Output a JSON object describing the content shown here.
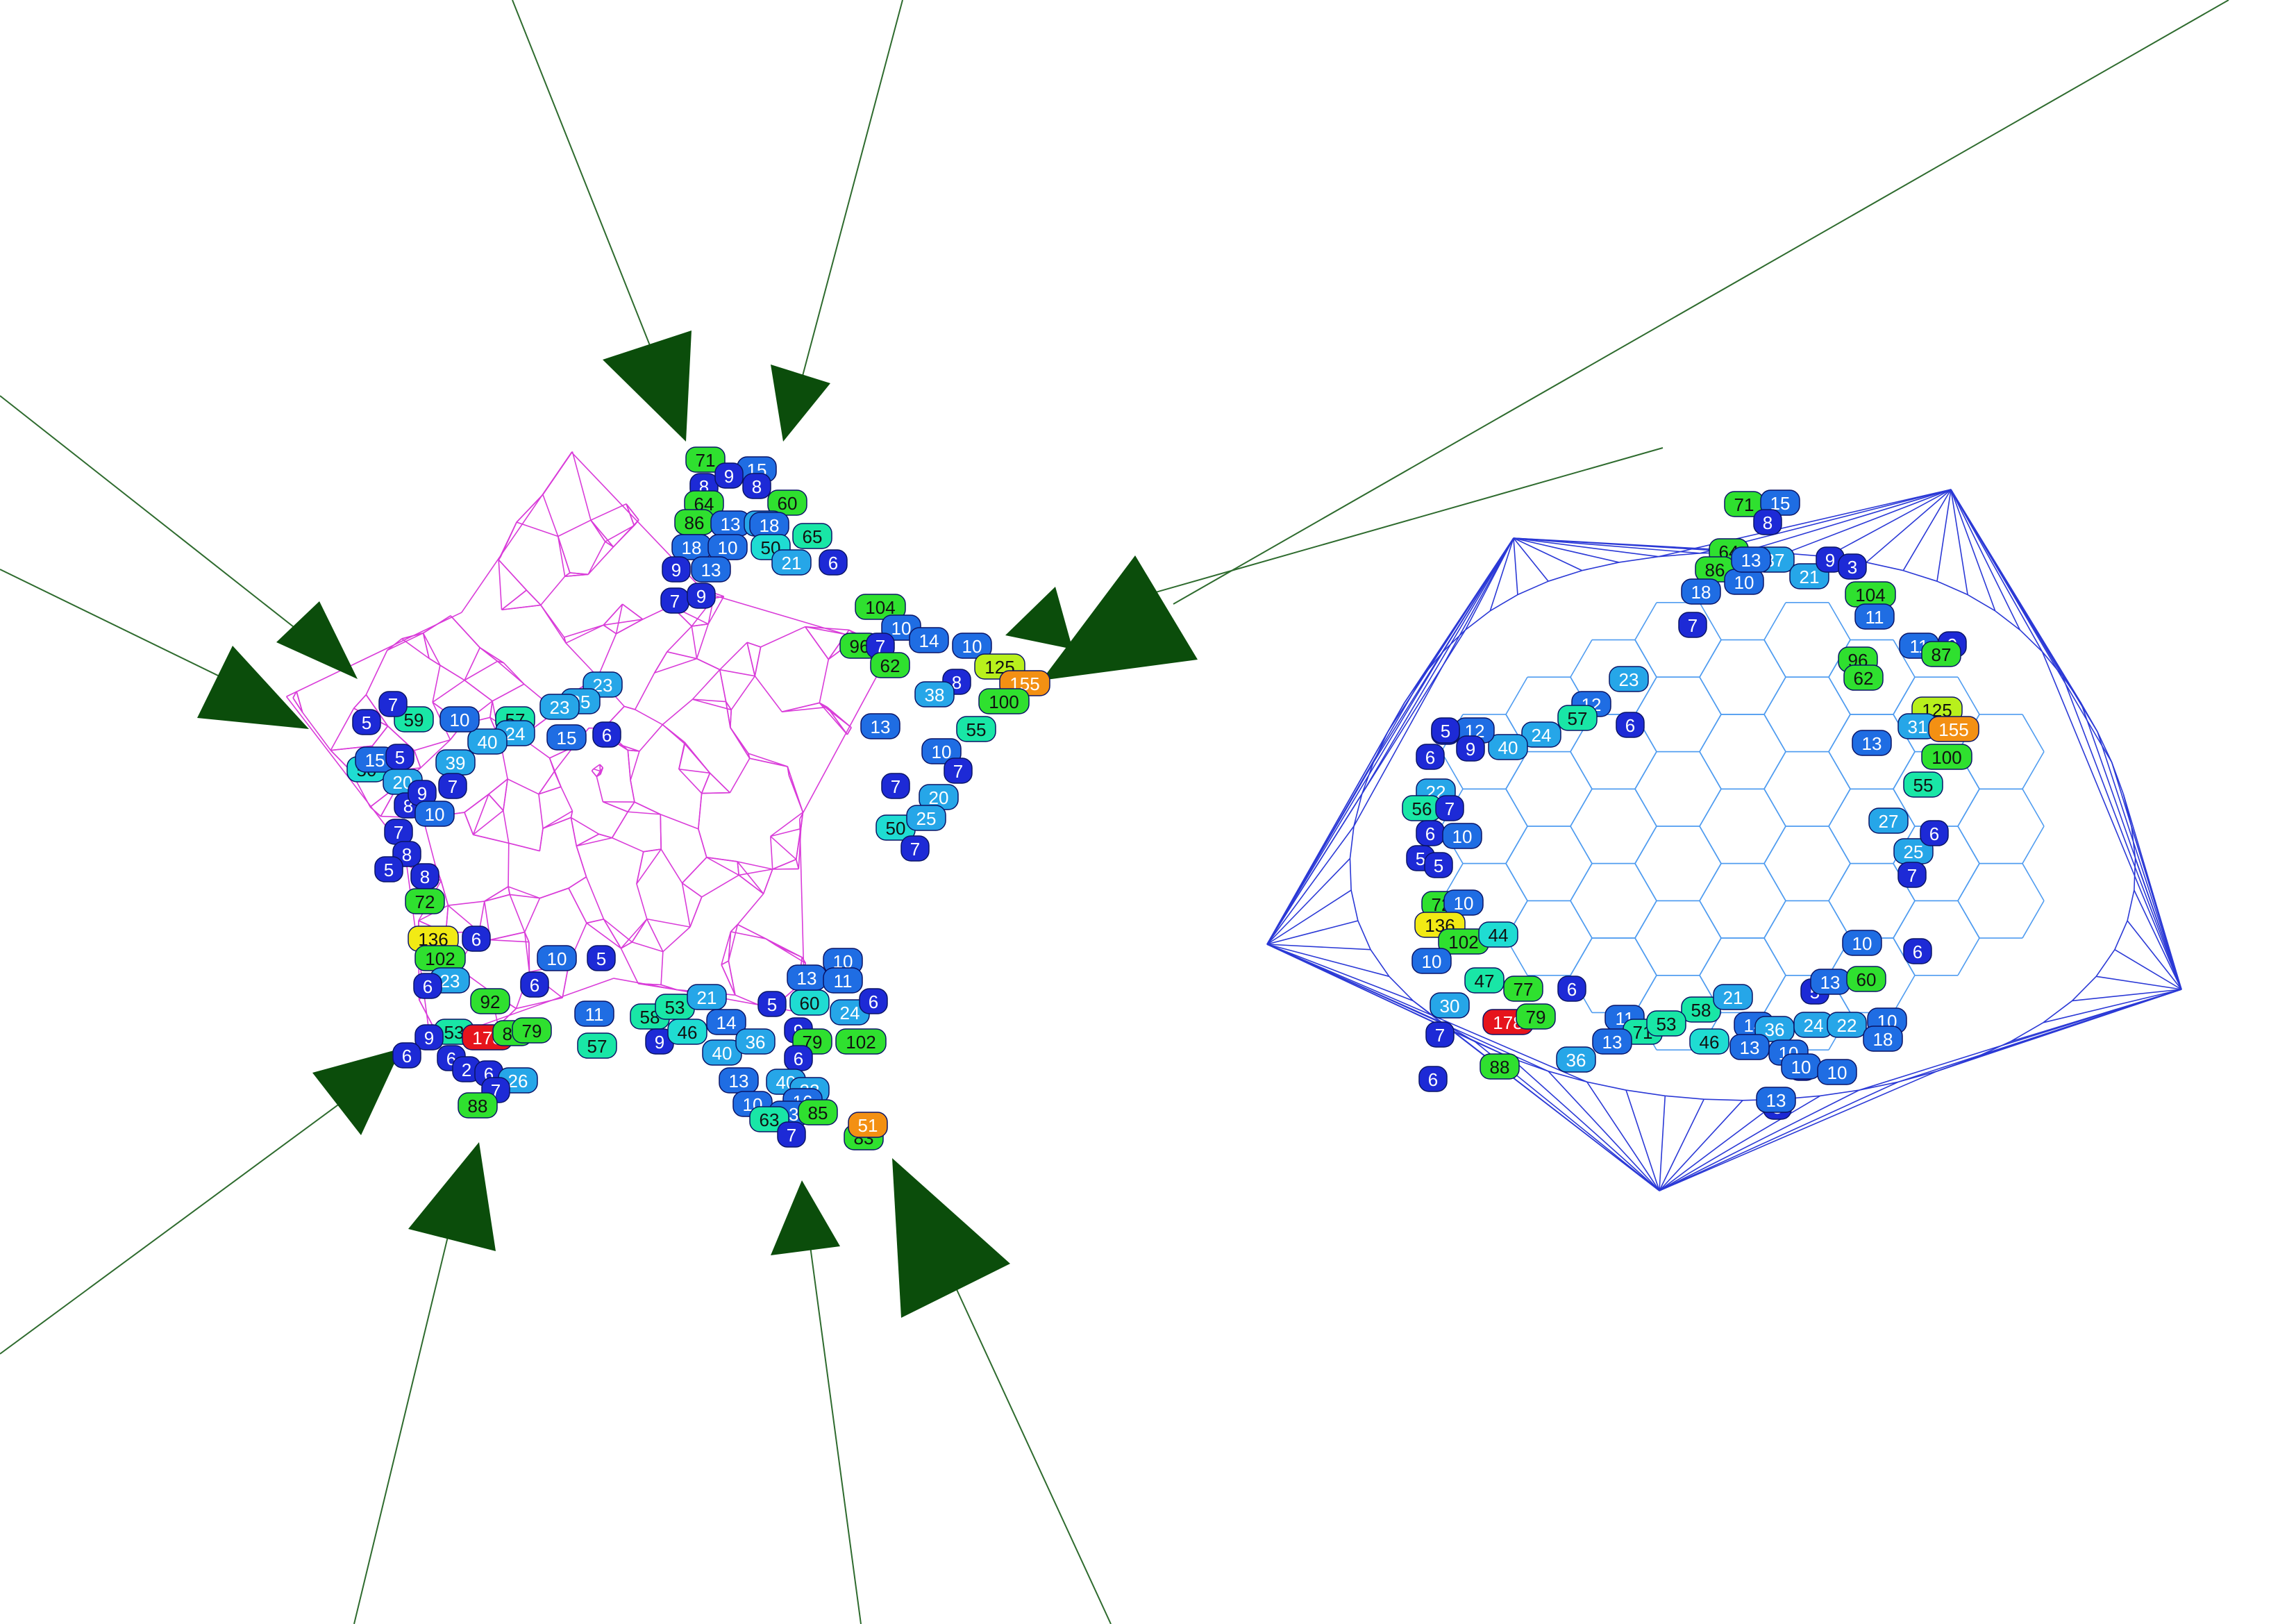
{
  "colors": {
    "background": "#ffffff",
    "spikes": "#0b4d0b",
    "spike_lines": "#2e6b2e",
    "left_mesh": "#d93cd9",
    "right_mesh": "#2b39d6",
    "right_mesh_light": "#4f9cf0",
    "scale": {
      "dark_blue": "#1d2ad6",
      "blue": "#1f6de3",
      "light_blue": "#26a6e8",
      "cyan": "#1fdcd2",
      "teal": "#19e6a6",
      "green": "#2fe02f",
      "yellow_green": "#b8f01c",
      "yellow": "#f2ea14",
      "orange": "#f39013",
      "red": "#e6141c"
    }
  },
  "left_graph": {
    "badges": [
      {
        "label": "71",
        "color": "green"
      },
      {
        "label": "15",
        "color": "blue"
      },
      {
        "label": "8",
        "color": "dark_blue"
      },
      {
        "label": "9",
        "color": "dark_blue"
      },
      {
        "label": "8",
        "color": "dark_blue"
      },
      {
        "label": "64",
        "color": "green"
      },
      {
        "label": "60",
        "color": "green"
      },
      {
        "label": "86",
        "color": "green"
      },
      {
        "label": "13",
        "color": "blue"
      },
      {
        "label": "37",
        "color": "light_blue"
      },
      {
        "label": "18",
        "color": "blue"
      },
      {
        "label": "65",
        "color": "teal"
      },
      {
        "label": "18",
        "color": "blue"
      },
      {
        "label": "10",
        "color": "blue"
      },
      {
        "label": "50",
        "color": "cyan"
      },
      {
        "label": "21",
        "color": "light_blue"
      },
      {
        "label": "6",
        "color": "dark_blue"
      },
      {
        "label": "9",
        "color": "dark_blue"
      },
      {
        "label": "13",
        "color": "blue"
      },
      {
        "label": "7",
        "color": "dark_blue"
      },
      {
        "label": "9",
        "color": "dark_blue"
      },
      {
        "label": "104",
        "color": "green"
      },
      {
        "label": "10",
        "color": "blue"
      },
      {
        "label": "14",
        "color": "blue"
      },
      {
        "label": "10",
        "color": "blue"
      },
      {
        "label": "96",
        "color": "green"
      },
      {
        "label": "7",
        "color": "dark_blue"
      },
      {
        "label": "62",
        "color": "green"
      },
      {
        "label": "125",
        "color": "yellow_green"
      },
      {
        "label": "8",
        "color": "dark_blue"
      },
      {
        "label": "38",
        "color": "light_blue"
      },
      {
        "label": "155",
        "color": "orange"
      },
      {
        "label": "100",
        "color": "green"
      },
      {
        "label": "13",
        "color": "blue"
      },
      {
        "label": "55",
        "color": "teal"
      },
      {
        "label": "10",
        "color": "blue"
      },
      {
        "label": "7",
        "color": "dark_blue"
      },
      {
        "label": "7",
        "color": "dark_blue"
      },
      {
        "label": "20",
        "color": "light_blue"
      },
      {
        "label": "50",
        "color": "cyan"
      },
      {
        "label": "25",
        "color": "light_blue"
      },
      {
        "label": "7",
        "color": "dark_blue"
      },
      {
        "label": "23",
        "color": "light_blue"
      },
      {
        "label": "25",
        "color": "light_blue"
      },
      {
        "label": "23",
        "color": "light_blue"
      },
      {
        "label": "57",
        "color": "teal"
      },
      {
        "label": "15",
        "color": "blue"
      },
      {
        "label": "6",
        "color": "dark_blue"
      },
      {
        "label": "24",
        "color": "light_blue"
      },
      {
        "label": "40",
        "color": "light_blue"
      },
      {
        "label": "39",
        "color": "light_blue"
      },
      {
        "label": "59",
        "color": "teal"
      },
      {
        "label": "10",
        "color": "blue"
      },
      {
        "label": "5",
        "color": "dark_blue"
      },
      {
        "label": "7",
        "color": "dark_blue"
      },
      {
        "label": "50",
        "color": "cyan"
      },
      {
        "label": "15",
        "color": "blue"
      },
      {
        "label": "5",
        "color": "dark_blue"
      },
      {
        "label": "20",
        "color": "light_blue"
      },
      {
        "label": "8",
        "color": "dark_blue"
      },
      {
        "label": "9",
        "color": "dark_blue"
      },
      {
        "label": "7",
        "color": "dark_blue"
      },
      {
        "label": "10",
        "color": "blue"
      },
      {
        "label": "7",
        "color": "dark_blue"
      },
      {
        "label": "8",
        "color": "dark_blue"
      },
      {
        "label": "5",
        "color": "dark_blue"
      },
      {
        "label": "8",
        "color": "dark_blue"
      },
      {
        "label": "72",
        "color": "green"
      },
      {
        "label": "136",
        "color": "yellow"
      },
      {
        "label": "6",
        "color": "dark_blue"
      },
      {
        "label": "102",
        "color": "green"
      },
      {
        "label": "23",
        "color": "light_blue"
      },
      {
        "label": "6",
        "color": "dark_blue"
      },
      {
        "label": "92",
        "color": "green"
      },
      {
        "label": "6",
        "color": "dark_blue"
      },
      {
        "label": "10",
        "color": "blue"
      },
      {
        "label": "53",
        "color": "teal"
      },
      {
        "label": "178",
        "color": "red"
      },
      {
        "label": "85",
        "color": "green"
      },
      {
        "label": "79",
        "color": "green"
      },
      {
        "label": "9",
        "color": "dark_blue"
      },
      {
        "label": "6",
        "color": "dark_blue"
      },
      {
        "label": "6",
        "color": "dark_blue"
      },
      {
        "label": "2",
        "color": "dark_blue"
      },
      {
        "label": "6",
        "color": "dark_blue"
      },
      {
        "label": "26",
        "color": "light_blue"
      },
      {
        "label": "7",
        "color": "dark_blue"
      },
      {
        "label": "88",
        "color": "green"
      },
      {
        "label": "5",
        "color": "dark_blue"
      },
      {
        "label": "11",
        "color": "blue"
      },
      {
        "label": "57",
        "color": "teal"
      },
      {
        "label": "58",
        "color": "teal"
      },
      {
        "label": "53",
        "color": "teal"
      },
      {
        "label": "21",
        "color": "light_blue"
      },
      {
        "label": "9",
        "color": "dark_blue"
      },
      {
        "label": "46",
        "color": "cyan"
      },
      {
        "label": "14",
        "color": "blue"
      },
      {
        "label": "40",
        "color": "light_blue"
      },
      {
        "label": "36",
        "color": "light_blue"
      },
      {
        "label": "5",
        "color": "dark_blue"
      },
      {
        "label": "60",
        "color": "cyan"
      },
      {
        "label": "24",
        "color": "light_blue"
      },
      {
        "label": "6",
        "color": "dark_blue"
      },
      {
        "label": "10",
        "color": "blue"
      },
      {
        "label": "13",
        "color": "blue"
      },
      {
        "label": "11",
        "color": "blue"
      },
      {
        "label": "9",
        "color": "dark_blue"
      },
      {
        "label": "79",
        "color": "green"
      },
      {
        "label": "102",
        "color": "green"
      },
      {
        "label": "6",
        "color": "dark_blue"
      },
      {
        "label": "13",
        "color": "blue"
      },
      {
        "label": "40",
        "color": "light_blue"
      },
      {
        "label": "22",
        "color": "light_blue"
      },
      {
        "label": "10",
        "color": "blue"
      },
      {
        "label": "16",
        "color": "blue"
      },
      {
        "label": "13",
        "color": "blue"
      },
      {
        "label": "63",
        "color": "teal"
      },
      {
        "label": "85",
        "color": "green"
      },
      {
        "label": "7",
        "color": "dark_blue"
      },
      {
        "label": "83",
        "color": "green"
      },
      {
        "label": "51",
        "color": "orange"
      }
    ]
  },
  "right_graph": {
    "badges": [
      {
        "label": "71",
        "color": "green"
      },
      {
        "label": "15",
        "color": "blue"
      },
      {
        "label": "8",
        "color": "dark_blue"
      },
      {
        "label": "64",
        "color": "green"
      },
      {
        "label": "86",
        "color": "green"
      },
      {
        "label": "37",
        "color": "light_blue"
      },
      {
        "label": "18",
        "color": "blue"
      },
      {
        "label": "10",
        "color": "blue"
      },
      {
        "label": "13",
        "color": "blue"
      },
      {
        "label": "21",
        "color": "light_blue"
      },
      {
        "label": "9",
        "color": "dark_blue"
      },
      {
        "label": "3",
        "color": "dark_blue"
      },
      {
        "label": "7",
        "color": "dark_blue"
      },
      {
        "label": "104",
        "color": "green"
      },
      {
        "label": "11",
        "color": "blue"
      },
      {
        "label": "11",
        "color": "blue"
      },
      {
        "label": "9",
        "color": "dark_blue"
      },
      {
        "label": "87",
        "color": "green"
      },
      {
        "label": "96",
        "color": "green"
      },
      {
        "label": "62",
        "color": "green"
      },
      {
        "label": "125",
        "color": "yellow_green"
      },
      {
        "label": "31",
        "color": "light_blue"
      },
      {
        "label": "155",
        "color": "orange"
      },
      {
        "label": "13",
        "color": "blue"
      },
      {
        "label": "100",
        "color": "green"
      },
      {
        "label": "55",
        "color": "teal"
      },
      {
        "label": "27",
        "color": "light_blue"
      },
      {
        "label": "25",
        "color": "light_blue"
      },
      {
        "label": "6",
        "color": "dark_blue"
      },
      {
        "label": "7",
        "color": "dark_blue"
      },
      {
        "label": "23",
        "color": "light_blue"
      },
      {
        "label": "12",
        "color": "blue"
      },
      {
        "label": "57",
        "color": "teal"
      },
      {
        "label": "6",
        "color": "dark_blue"
      },
      {
        "label": "24",
        "color": "light_blue"
      },
      {
        "label": "40",
        "color": "light_blue"
      },
      {
        "label": "12",
        "color": "blue"
      },
      {
        "label": "5",
        "color": "dark_blue"
      },
      {
        "label": "6",
        "color": "dark_blue"
      },
      {
        "label": "9",
        "color": "dark_blue"
      },
      {
        "label": "5",
        "color": "dark_blue"
      },
      {
        "label": "22",
        "color": "light_blue"
      },
      {
        "label": "56",
        "color": "teal"
      },
      {
        "label": "7",
        "color": "dark_blue"
      },
      {
        "label": "5",
        "color": "dark_blue"
      },
      {
        "label": "6",
        "color": "dark_blue"
      },
      {
        "label": "10",
        "color": "blue"
      },
      {
        "label": "5",
        "color": "dark_blue"
      },
      {
        "label": "72",
        "color": "green"
      },
      {
        "label": "10",
        "color": "blue"
      },
      {
        "label": "136",
        "color": "yellow"
      },
      {
        "label": "102",
        "color": "green"
      },
      {
        "label": "44",
        "color": "cyan"
      },
      {
        "label": "10",
        "color": "blue"
      },
      {
        "label": "47",
        "color": "teal"
      },
      {
        "label": "77",
        "color": "green"
      },
      {
        "label": "6",
        "color": "dark_blue"
      },
      {
        "label": "30",
        "color": "light_blue"
      },
      {
        "label": "178",
        "color": "red"
      },
      {
        "label": "79",
        "color": "green"
      },
      {
        "label": "7",
        "color": "dark_blue"
      },
      {
        "label": "36",
        "color": "light_blue"
      },
      {
        "label": "88",
        "color": "green"
      },
      {
        "label": "6",
        "color": "dark_blue"
      },
      {
        "label": "11",
        "color": "blue"
      },
      {
        "label": "71",
        "color": "teal"
      },
      {
        "label": "13",
        "color": "blue"
      },
      {
        "label": "58",
        "color": "teal"
      },
      {
        "label": "53",
        "color": "teal"
      },
      {
        "label": "21",
        "color": "light_blue"
      },
      {
        "label": "46",
        "color": "cyan"
      },
      {
        "label": "14",
        "color": "blue"
      },
      {
        "label": "36",
        "color": "light_blue"
      },
      {
        "label": "13",
        "color": "blue"
      },
      {
        "label": "10",
        "color": "blue"
      },
      {
        "label": "7",
        "color": "dark_blue"
      },
      {
        "label": "5",
        "color": "dark_blue"
      },
      {
        "label": "13",
        "color": "blue"
      },
      {
        "label": "60",
        "color": "green"
      },
      {
        "label": "24",
        "color": "light_blue"
      },
      {
        "label": "22",
        "color": "light_blue"
      },
      {
        "label": "10",
        "color": "blue"
      },
      {
        "label": "18",
        "color": "blue"
      },
      {
        "label": "10",
        "color": "blue"
      },
      {
        "label": "10",
        "color": "blue"
      },
      {
        "label": "6",
        "color": "dark_blue"
      },
      {
        "label": "10",
        "color": "blue"
      },
      {
        "label": "5",
        "color": "dark_blue"
      },
      {
        "label": "13",
        "color": "blue"
      }
    ]
  }
}
